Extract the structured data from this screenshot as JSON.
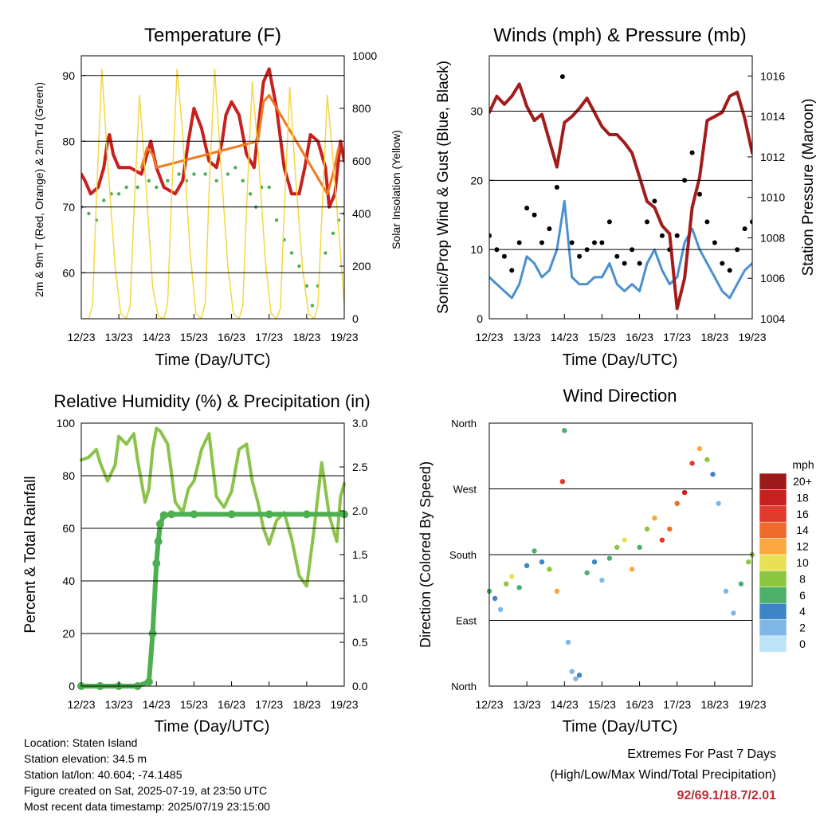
{
  "chart_data": [
    {
      "type": "line",
      "title": "Temperature (F)",
      "xlabel": "Time (Day/UTC)",
      "ylabel": "2m & 9m T (Red, Orange) & 2m Td (Green)",
      "ylabel_right": "Solar Insolation (Yellow)",
      "x_ticks": [
        "12/23",
        "13/23",
        "14/23",
        "15/23",
        "16/23",
        "17/23",
        "18/23",
        "19/23"
      ],
      "ylim": [
        53,
        93
      ],
      "ylim_right": [
        0,
        1000
      ],
      "y_ticks": [
        60,
        70,
        80,
        90
      ],
      "y_ticks_right": [
        0,
        200,
        400,
        600,
        800,
        1000
      ],
      "grid": true,
      "colors": {
        "temp_2m": "#c8201e",
        "temp_9m": "#f07a1d",
        "dewpoint": "#4caf50",
        "insolation": "#f5d742"
      },
      "series": [
        {
          "key": "temp_2m",
          "x": [
            0,
            0.1,
            0.25,
            0.45,
            0.6,
            0.7,
            0.75,
            0.85,
            1.0,
            1.3,
            1.6,
            1.85,
            2.0,
            2.2,
            2.5,
            2.7,
            2.85,
            3.0,
            3.2,
            3.4,
            3.6,
            3.75,
            3.85,
            4.0,
            4.2,
            4.4,
            4.6,
            4.75,
            4.85,
            5.0,
            5.2,
            5.4,
            5.6,
            5.8,
            5.95,
            6.1,
            6.3,
            6.5,
            6.6,
            6.75,
            6.9,
            7.0
          ],
          "values": [
            75,
            74,
            72,
            73,
            76,
            80,
            81,
            78,
            76,
            76,
            75,
            80,
            76,
            73,
            72,
            74,
            80,
            85,
            82,
            77,
            76,
            80,
            84,
            86,
            84,
            78,
            76,
            84,
            89,
            91,
            85,
            76,
            72,
            72,
            76,
            81,
            80,
            76,
            70,
            72,
            80,
            77
          ]
        },
        {
          "key": "temp_9m",
          "x": [
            1.6,
            1.75,
            1.9,
            2.0,
            4.7,
            4.85,
            5.0,
            6.55,
            6.7,
            6.85
          ],
          "values": [
            76,
            79,
            78,
            76,
            80,
            86,
            87,
            72,
            75,
            79
          ]
        },
        {
          "key": "dewpoint",
          "x": [
            0,
            0.2,
            0.4,
            0.6,
            0.8,
            1.0,
            1.2,
            1.5,
            1.8,
            2.0,
            2.3,
            2.6,
            2.8,
            3.0,
            3.3,
            3.6,
            3.9,
            4.1,
            4.3,
            4.5,
            4.65,
            4.8,
            5.0,
            5.2,
            5.4,
            5.6,
            5.8,
            6.0,
            6.15,
            6.3,
            6.5,
            6.7,
            6.85,
            7.0
          ],
          "values": [
            70,
            69,
            68,
            71,
            72,
            72,
            73,
            73,
            74,
            73,
            74,
            75,
            74,
            75,
            75,
            74,
            75,
            76,
            74,
            72,
            70,
            73,
            73,
            68,
            65,
            63,
            61,
            58,
            55,
            58,
            63,
            66,
            68,
            69
          ]
        },
        {
          "key": "insolation",
          "x": [
            0,
            0.2,
            0.3,
            0.4,
            0.55,
            0.7,
            0.9,
            1.05,
            1.2,
            1.3,
            1.4,
            1.55,
            1.75,
            1.9,
            2.05,
            2.2,
            2.3,
            2.4,
            2.55,
            2.7,
            2.9,
            3.05,
            3.2,
            3.3,
            3.4,
            3.55,
            3.7,
            3.9,
            4.05,
            4.2,
            4.3,
            4.4,
            4.55,
            4.7,
            4.9,
            5.05,
            5.2,
            5.3,
            5.4,
            5.55,
            5.7,
            5.9,
            6.05,
            6.2,
            6.3,
            6.4,
            6.55,
            6.7,
            6.9,
            7.0
          ],
          "values": [
            0,
            0,
            50,
            450,
            950,
            600,
            200,
            20,
            0,
            50,
            400,
            850,
            450,
            120,
            10,
            0,
            60,
            450,
            950,
            700,
            250,
            20,
            0,
            60,
            480,
            950,
            620,
            200,
            20,
            0,
            50,
            420,
            900,
            650,
            220,
            20,
            0,
            40,
            400,
            880,
            550,
            180,
            20,
            0,
            50,
            380,
            850,
            600,
            250,
            50
          ]
        }
      ]
    },
    {
      "type": "scatter",
      "title": "Winds (mph) & Pressure (mb)",
      "xlabel": "Time (Day/UTC)",
      "ylabel": "Sonic/Prop Wind & Gust (Blue, Black)",
      "ylabel_right": "Station Pressure (Maroon)",
      "x_ticks": [
        "12/23",
        "13/23",
        "14/23",
        "15/23",
        "16/23",
        "17/23",
        "18/23",
        "19/23"
      ],
      "ylim": [
        0,
        38
      ],
      "ylim_right": [
        1004,
        1017
      ],
      "y_ticks": [
        0,
        10,
        20,
        30
      ],
      "y_ticks_right": [
        1004,
        1006,
        1008,
        1010,
        1012,
        1014,
        1016
      ],
      "grid": true,
      "colors": {
        "wind": "#4a90d0",
        "gust": "#000000",
        "pressure": "#a31c1c"
      },
      "series": [
        {
          "key": "wind",
          "x": [
            0,
            0.2,
            0.4,
            0.6,
            0.8,
            1.0,
            1.2,
            1.4,
            1.6,
            1.8,
            2.0,
            2.2,
            2.4,
            2.6,
            2.8,
            3.0,
            3.2,
            3.4,
            3.6,
            3.8,
            4.0,
            4.2,
            4.4,
            4.6,
            4.8,
            5.0,
            5.2,
            5.4,
            5.6,
            5.8,
            6.0,
            6.2,
            6.4,
            6.6,
            6.8,
            7.0
          ],
          "values": [
            6,
            5,
            4,
            3,
            5,
            9,
            8,
            6,
            7,
            10,
            17,
            6,
            5,
            5,
            6,
            6,
            8,
            5,
            4,
            5,
            4,
            8,
            10,
            7,
            5,
            6,
            11,
            13,
            10,
            8,
            6,
            4,
            3,
            5,
            7,
            8
          ]
        },
        {
          "key": "gust",
          "x": [
            0,
            0.2,
            0.4,
            0.6,
            0.8,
            1.0,
            1.2,
            1.4,
            1.6,
            1.8,
            1.95,
            2.2,
            2.4,
            2.6,
            2.8,
            3.0,
            3.2,
            3.4,
            3.6,
            3.8,
            4.0,
            4.2,
            4.4,
            4.6,
            4.8,
            5.0,
            5.2,
            5.4,
            5.6,
            5.8,
            6.0,
            6.2,
            6.4,
            6.6,
            6.8,
            7.0
          ],
          "values": [
            12,
            10,
            9,
            7,
            11,
            16,
            15,
            11,
            13,
            19,
            35,
            11,
            9,
            10,
            11,
            11,
            14,
            9,
            8,
            10,
            8,
            14,
            17,
            12,
            10,
            12,
            20,
            24,
            18,
            14,
            11,
            8,
            7,
            10,
            13,
            14
          ]
        },
        {
          "key": "pressure",
          "x": [
            0,
            0.2,
            0.4,
            0.6,
            0.8,
            1.0,
            1.2,
            1.4,
            1.6,
            1.8,
            2.0,
            2.2,
            2.4,
            2.6,
            2.8,
            3.0,
            3.2,
            3.4,
            3.6,
            3.8,
            4.0,
            4.2,
            4.4,
            4.6,
            4.8,
            5.0,
            5.2,
            5.4,
            5.6,
            5.8,
            6.0,
            6.2,
            6.4,
            6.6,
            6.8,
            7.0
          ],
          "values": [
            1014.2,
            1015.0,
            1014.6,
            1015.0,
            1015.6,
            1014.5,
            1013.8,
            1014.1,
            1012.8,
            1011.5,
            1013.7,
            1014.0,
            1014.4,
            1014.9,
            1014.2,
            1013.5,
            1013.1,
            1013.1,
            1012.7,
            1012.2,
            1011.0,
            1009.8,
            1009.5,
            1008.6,
            1008.2,
            1004.5,
            1006.0,
            1009.5,
            1011.0,
            1013.8,
            1014.0,
            1014.2,
            1015.0,
            1015.2,
            1013.9,
            1012.2
          ]
        }
      ]
    },
    {
      "type": "line",
      "title": "Relative Humidity (%) & Precipitation (in)",
      "xlabel": "Time (Day/UTC)",
      "ylabel": "Percent & Total Rainfall",
      "x_ticks": [
        "12/23",
        "13/23",
        "14/23",
        "15/23",
        "16/23",
        "17/23",
        "18/23",
        "19/23"
      ],
      "ylim": [
        0,
        100
      ],
      "ylim_right": [
        0,
        3.0
      ],
      "y_ticks": [
        0,
        20,
        40,
        60,
        80,
        100
      ],
      "y_ticks_right": [
        "0.0",
        "0.5",
        "1.0",
        "1.5",
        "2.0",
        "2.5",
        "3.0"
      ],
      "grid": true,
      "colors": {
        "humidity": "#8bc34a",
        "precipitation": "#4caf50"
      },
      "series": [
        {
          "key": "humidity",
          "x": [
            0,
            0.2,
            0.4,
            0.5,
            0.7,
            0.9,
            1.0,
            1.2,
            1.4,
            1.5,
            1.7,
            1.8,
            1.9,
            2.0,
            2.1,
            2.3,
            2.5,
            2.7,
            2.85,
            3.0,
            3.2,
            3.4,
            3.6,
            3.8,
            4.0,
            4.2,
            4.4,
            4.55,
            4.7,
            4.85,
            5.0,
            5.2,
            5.4,
            5.6,
            5.8,
            6.0,
            6.2,
            6.4,
            6.6,
            6.8,
            6.9,
            7.0
          ],
          "values": [
            86,
            87,
            90,
            85,
            78,
            84,
            95,
            92,
            96,
            86,
            70,
            75,
            90,
            98,
            97,
            92,
            70,
            66,
            75,
            78,
            90,
            96,
            72,
            68,
            74,
            90,
            92,
            78,
            70,
            60,
            54,
            63,
            66,
            56,
            42,
            38,
            60,
            85,
            65,
            55,
            72,
            77
          ]
        },
        {
          "key": "precipitation",
          "x": [
            0,
            0.5,
            1.0,
            1.5,
            1.8,
            1.9,
            2.0,
            2.05,
            2.1,
            2.2,
            2.4,
            3.0,
            4.0,
            5.0,
            6.0,
            7.0
          ],
          "values": [
            0.0,
            0.0,
            0.0,
            0.0,
            0.05,
            0.6,
            1.4,
            1.65,
            1.85,
            1.95,
            1.96,
            1.96,
            1.96,
            1.96,
            1.96,
            1.96
          ]
        }
      ]
    },
    {
      "type": "scatter",
      "title": "Wind Direction",
      "xlabel": "Time (Day/UTC)",
      "ylabel": "Direction (Colored By Speed)",
      "x_ticks": [
        "12/23",
        "13/23",
        "14/23",
        "15/23",
        "16/23",
        "17/23",
        "18/23",
        "19/23"
      ],
      "y_ticks": [
        "North",
        "East",
        "South",
        "West",
        "North"
      ],
      "ylim": [
        0,
        360
      ],
      "grid": true,
      "legend": {
        "title": "mph",
        "placement": "right",
        "labels": [
          "20+",
          "18",
          "16",
          "14",
          "12",
          "10",
          "8",
          "6",
          "4",
          "2",
          "0"
        ],
        "colors": [
          "#9e1a1a",
          "#c8201e",
          "#e03b2c",
          "#f06a2a",
          "#f9a73e",
          "#e8e155",
          "#8cc63f",
          "#4caf6a",
          "#3d85c6",
          "#7fb8e6",
          "#bde3f6"
        ]
      },
      "series": [
        {
          "key": "direction",
          "x": [
            0,
            0.15,
            0.3,
            0.45,
            0.6,
            0.8,
            1.0,
            1.2,
            1.4,
            1.6,
            1.8,
            1.95,
            2.0,
            2.1,
            2.2,
            2.3,
            2.4,
            2.6,
            2.8,
            3.0,
            3.2,
            3.4,
            3.6,
            3.8,
            4.0,
            4.2,
            4.4,
            4.6,
            4.8,
            5.0,
            5.2,
            5.4,
            5.6,
            5.8,
            5.95,
            6.1,
            6.3,
            6.5,
            6.7,
            6.9,
            7.0
          ],
          "values": [
            130,
            120,
            105,
            140,
            150,
            135,
            165,
            185,
            170,
            160,
            130,
            280,
            350,
            60,
            20,
            10,
            15,
            155,
            170,
            145,
            175,
            190,
            200,
            160,
            190,
            215,
            230,
            200,
            215,
            250,
            265,
            305,
            325,
            310,
            290,
            250,
            130,
            100,
            140,
            170,
            180
          ],
          "speeds": [
            6,
            4,
            3,
            8,
            10,
            7,
            5,
            6,
            4,
            8,
            12,
            16,
            6,
            3,
            2,
            2,
            4,
            6,
            4,
            3,
            6,
            8,
            10,
            12,
            6,
            8,
            12,
            16,
            15,
            14,
            18,
            16,
            12,
            8,
            4,
            3,
            2,
            3,
            6,
            8,
            8
          ]
        }
      ]
    }
  ],
  "info": {
    "location": "Location: Staten Island",
    "elevation": "Station elevation: 34.5 m",
    "latlon": "Station lat/lon: 40.604; -74.1485",
    "created": "Figure created on Sat, 2025-07-19, at 23:50 UTC",
    "latest": "Most recent data timestamp: 2025/07/19 23:15:00"
  },
  "extremes": {
    "title": "Extremes For Past 7 Days",
    "subtitle": "(High/Low/Max Wind/Total Precipitation)",
    "value": "92/69.1/18.7/2.01"
  }
}
